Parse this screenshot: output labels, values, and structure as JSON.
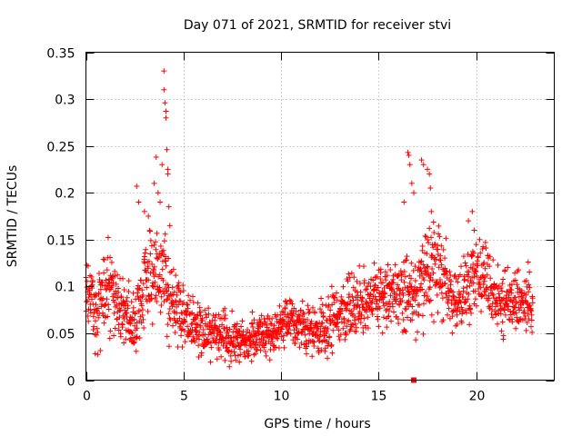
{
  "chart_data": {
    "type": "scatter",
    "title": "Day 071 of 2021, SRMTID for receiver stvi",
    "xlabel": "GPS time / hours",
    "ylabel": "SRMTID / TECUs",
    "xlim": [
      0,
      24
    ],
    "ylim": [
      0,
      0.35
    ],
    "grid": true,
    "marker": "plus",
    "series_color": "#ff0000",
    "x_ticks": [
      0,
      5,
      10,
      15,
      20
    ],
    "x_tick_labels": [
      "0",
      "5",
      "10",
      "15",
      "20"
    ],
    "y_ticks": [
      0,
      0.05,
      0.1,
      0.15,
      0.2,
      0.25,
      0.3,
      0.35
    ],
    "y_tick_labels": [
      "0",
      "0.05",
      "0.1",
      "0.15",
      "0.2",
      "0.25",
      "0.3",
      "0.35"
    ],
    "profile": {
      "description": "approximate envelope of the dense scatter (hour, central SRMTID, spread)",
      "hours": [
        0,
        0.5,
        1,
        1.5,
        2,
        2.5,
        3,
        3.5,
        4,
        4.5,
        5,
        5.5,
        6,
        6.5,
        7,
        7.5,
        8,
        8.5,
        9,
        9.5,
        10,
        10.5,
        11,
        11.5,
        12,
        12.5,
        13,
        13.5,
        14,
        14.5,
        15,
        15.5,
        16,
        16.5,
        17,
        17.5,
        18,
        18.5,
        19,
        19.5,
        20,
        20.5,
        21,
        21.5,
        22,
        22.5,
        22.9
      ],
      "center": [
        0.1,
        0.07,
        0.09,
        0.09,
        0.07,
        0.06,
        0.1,
        0.12,
        0.11,
        0.08,
        0.07,
        0.06,
        0.05,
        0.05,
        0.05,
        0.045,
        0.045,
        0.045,
        0.05,
        0.05,
        0.06,
        0.06,
        0.06,
        0.05,
        0.05,
        0.06,
        0.07,
        0.08,
        0.08,
        0.09,
        0.09,
        0.09,
        0.09,
        0.09,
        0.09,
        0.11,
        0.12,
        0.1,
        0.08,
        0.1,
        0.12,
        0.11,
        0.09,
        0.08,
        0.09,
        0.08,
        0.09
      ],
      "spread": [
        0.03,
        0.03,
        0.04,
        0.04,
        0.03,
        0.03,
        0.04,
        0.04,
        0.04,
        0.03,
        0.03,
        0.025,
        0.02,
        0.02,
        0.02,
        0.02,
        0.02,
        0.02,
        0.02,
        0.02,
        0.02,
        0.02,
        0.02,
        0.025,
        0.025,
        0.025,
        0.025,
        0.03,
        0.03,
        0.03,
        0.03,
        0.03,
        0.03,
        0.03,
        0.03,
        0.04,
        0.04,
        0.04,
        0.03,
        0.03,
        0.03,
        0.03,
        0.03,
        0.03,
        0.03,
        0.03,
        0.03
      ],
      "x_step_hours": 0.0125
    },
    "outliers": {
      "x": [
        2.6,
        2.7,
        3.0,
        3.2,
        3.5,
        3.6,
        3.7,
        3.8,
        3.9,
        4.0,
        4.0,
        4.05,
        4.1,
        4.1,
        4.15,
        4.2,
        4.2,
        4.25,
        4.3,
        16.3,
        16.5,
        16.55,
        16.6,
        16.7,
        16.8,
        17.2,
        17.3,
        17.5,
        17.6,
        17.65,
        17.7,
        19.6,
        19.8,
        19.9
      ],
      "y": [
        0.207,
        0.19,
        0.18,
        0.175,
        0.21,
        0.238,
        0.2,
        0.19,
        0.23,
        0.33,
        0.31,
        0.296,
        0.287,
        0.28,
        0.246,
        0.225,
        0.22,
        0.185,
        0.165,
        0.19,
        0.243,
        0.24,
        0.23,
        0.21,
        0.2,
        0.235,
        0.23,
        0.225,
        0.22,
        0.205,
        0.18,
        0.17,
        0.18,
        0.16
      ]
    },
    "marker_x": 16.8,
    "marker_y": 0
  }
}
